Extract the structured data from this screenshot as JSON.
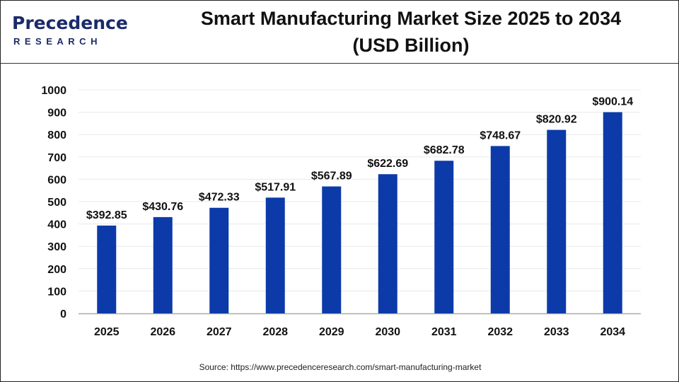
{
  "logo": {
    "line1": "Precedence",
    "line2": "RESEARCH"
  },
  "title": [
    "Smart Manufacturing Market Size 2025 to 2034",
    "(USD Billion)"
  ],
  "source": "Source: https://www.precedenceresearch.com/smart-manufacturing-market",
  "colors": {
    "bar": "#0d3aa9",
    "grid": "#e8e8e8",
    "axis": "#aaaaaa"
  },
  "chart_data": {
    "type": "bar",
    "title": "Smart Manufacturing Market Size 2025 to 2034 (USD Billion)",
    "xlabel": "",
    "ylabel": "",
    "categories": [
      "2025",
      "2026",
      "2027",
      "2028",
      "2029",
      "2030",
      "2031",
      "2032",
      "2033",
      "2034"
    ],
    "values": [
      392.85,
      430.76,
      472.33,
      517.91,
      567.89,
      622.69,
      682.78,
      748.67,
      820.92,
      900.14
    ],
    "data_labels": [
      "$392.85",
      "$430.76",
      "$472.33",
      "$517.91",
      "$567.89",
      "$622.69",
      "$682.78",
      "$748.67",
      "$820.92",
      "$900.14"
    ],
    "ylim": [
      0,
      1000
    ],
    "yticks": [
      0,
      100,
      200,
      300,
      400,
      500,
      600,
      700,
      800,
      900,
      1000
    ],
    "grid": true,
    "legend": "none"
  }
}
